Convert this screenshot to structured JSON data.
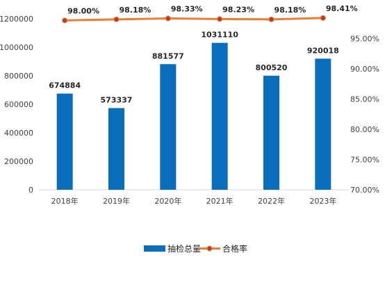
{
  "colors": {
    "bar": "#0a6ebd",
    "line": "#ed7d31",
    "marker_fill": "#c0392b",
    "axis": "#d9d9d9"
  },
  "chart_data": {
    "type": "bar",
    "categories": [
      "2018年",
      "2019年",
      "2020年",
      "2021年",
      "2022年",
      "2023年"
    ],
    "series": [
      {
        "name": "抽检总量",
        "type": "bar",
        "axis": "left",
        "values": [
          674884,
          573337,
          881577,
          1031110,
          800520,
          920018
        ],
        "labels": [
          "674884",
          "573337",
          "881577",
          "1031110",
          "800520",
          "920018"
        ]
      },
      {
        "name": "合格率",
        "type": "line",
        "axis": "right",
        "values": [
          98.0,
          98.18,
          98.33,
          98.23,
          98.18,
          98.41
        ],
        "labels": [
          "98.00%",
          "98.18%",
          "98.33%",
          "98.23%",
          "98.18%",
          "98.41%"
        ]
      }
    ],
    "y_left": {
      "min": 0,
      "max": 1200000,
      "ticks": [
        0,
        200000,
        400000,
        600000,
        800000,
        1000000,
        1200000
      ],
      "tick_labels": [
        "0",
        "200000",
        "400000",
        "600000",
        "800000",
        "1000000",
        "1200000"
      ]
    },
    "y_right": {
      "min": 70,
      "max": 100,
      "ticks": [
        70,
        75,
        80,
        85,
        90,
        95
      ],
      "tick_labels": [
        "70.00%",
        "75.00%",
        "80.00%",
        "85.00%",
        "90.00%",
        "95.00%"
      ]
    },
    "legend": {
      "position": "bottom"
    },
    "grid": false
  }
}
